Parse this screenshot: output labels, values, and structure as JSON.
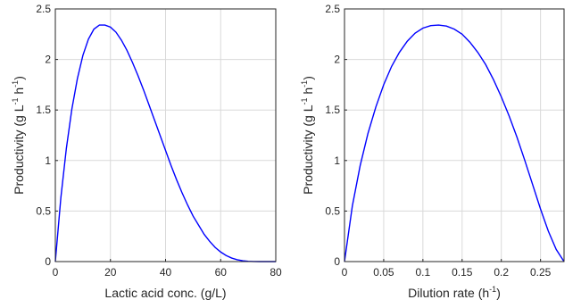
{
  "chart_data": [
    {
      "type": "line",
      "xlabel": "Lactic acid conc. (g/L)",
      "ylabel_main": "Productivity (g L",
      "ylabel_sup1": "-1",
      "ylabel_mid": " h",
      "ylabel_sup2": "-1",
      "ylabel_end": ")",
      "xlim": [
        0,
        80
      ],
      "ylim": [
        0,
        2.5
      ],
      "xticks": [
        "0",
        "20",
        "40",
        "60",
        "80"
      ],
      "yticks": [
        "0",
        "0.5",
        "1",
        "1.5",
        "2",
        "2.5"
      ],
      "grid": true,
      "series": [
        {
          "color": "#0000ff",
          "x": [
            0,
            2,
            4,
            6,
            8,
            10,
            12,
            14,
            16,
            18,
            20,
            22,
            24,
            26,
            28,
            30,
            32,
            34,
            36,
            38,
            40,
            42,
            44,
            46,
            48,
            50,
            52,
            54,
            56,
            58,
            60,
            62,
            64,
            66,
            68,
            70,
            72,
            74,
            76,
            78,
            80
          ],
          "y": [
            0,
            0.63,
            1.12,
            1.51,
            1.81,
            2.04,
            2.2,
            2.3,
            2.34,
            2.34,
            2.32,
            2.27,
            2.19,
            2.09,
            1.97,
            1.84,
            1.7,
            1.55,
            1.4,
            1.25,
            1.1,
            0.95,
            0.81,
            0.68,
            0.56,
            0.45,
            0.36,
            0.27,
            0.2,
            0.14,
            0.095,
            0.06,
            0.035,
            0.018,
            0.008,
            0.003,
            0.001,
            0,
            0,
            0,
            0
          ]
        }
      ]
    },
    {
      "type": "line",
      "xlabel_main": "Dilution rate (h",
      "xlabel_sup": "-1",
      "xlabel_end": ")",
      "ylabel_main": "Productivity (g L",
      "ylabel_sup1": "-1",
      "ylabel_mid": " h",
      "ylabel_sup2": "-1",
      "ylabel_end": ")",
      "xlim": [
        0,
        0.28
      ],
      "ylim": [
        0,
        2.5
      ],
      "xticks": [
        "0",
        "0.05",
        "0.1",
        "0.15",
        "0.2",
        "0.25"
      ],
      "yticks": [
        "0",
        "0.5",
        "1",
        "1.5",
        "2",
        "2.5"
      ],
      "grid": true,
      "series": [
        {
          "color": "#0000ff",
          "x": [
            0,
            0.01,
            0.02,
            0.03,
            0.04,
            0.05,
            0.06,
            0.07,
            0.08,
            0.09,
            0.1,
            0.11,
            0.12,
            0.13,
            0.14,
            0.15,
            0.16,
            0.17,
            0.18,
            0.19,
            0.2,
            0.21,
            0.22,
            0.23,
            0.24,
            0.25,
            0.26,
            0.27,
            0.28
          ],
          "y": [
            0,
            0.55,
            0.95,
            1.27,
            1.53,
            1.75,
            1.93,
            2.07,
            2.18,
            2.26,
            2.31,
            2.335,
            2.34,
            2.33,
            2.3,
            2.25,
            2.17,
            2.07,
            1.95,
            1.8,
            1.63,
            1.44,
            1.23,
            1.0,
            0.76,
            0.52,
            0.3,
            0.12,
            0
          ]
        }
      ]
    }
  ]
}
